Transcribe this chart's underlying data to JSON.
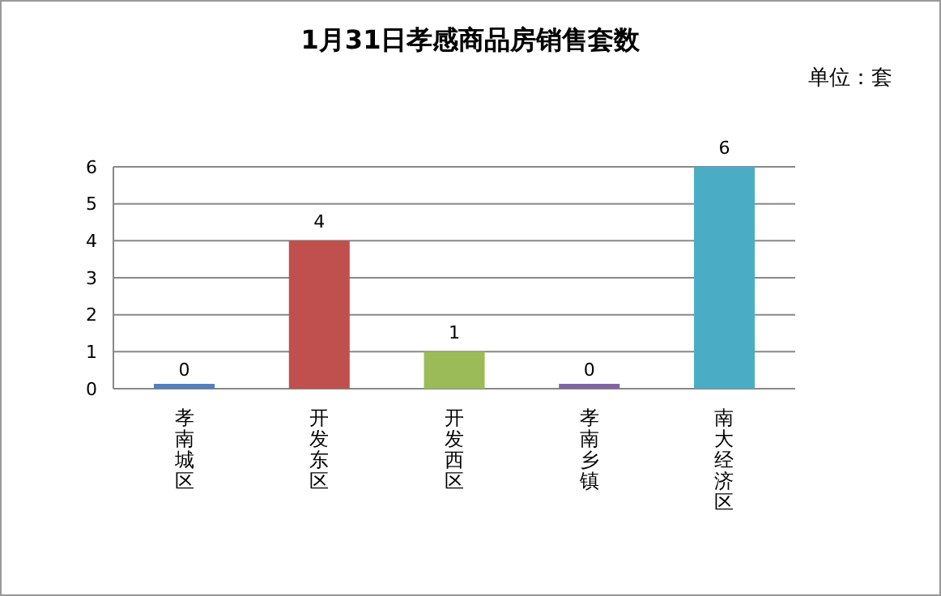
{
  "chart_data": {
    "type": "bar",
    "title": "1月31日孝感商品房销售套数",
    "annotations": [
      "单位：套"
    ],
    "categories": [
      "孝南城区",
      "开发东区",
      "开发西区",
      "孝南乡镇",
      "南大经济区"
    ],
    "values": [
      0,
      4,
      1,
      0,
      6
    ],
    "colors": [
      "#4f81bd",
      "#c0504d",
      "#9bbb59",
      "#8064a2",
      "#4bacc6"
    ],
    "ylim": [
      0,
      6
    ],
    "yticks": [
      0,
      1,
      2,
      3,
      4,
      5,
      6
    ],
    "grid": "y",
    "data_labels": true
  }
}
